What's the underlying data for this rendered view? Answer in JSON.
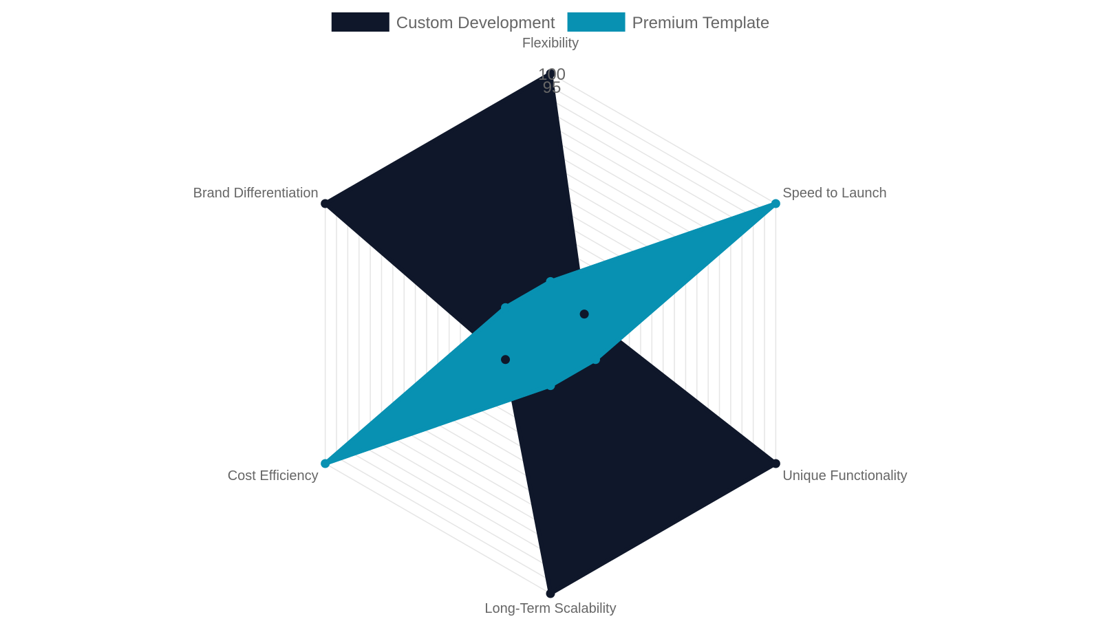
{
  "chart_data": {
    "type": "radar",
    "axes": [
      "Flexibility",
      "Speed to Launch",
      "Unique Functionality",
      "Long-Term Scalability",
      "Cost Efficiency",
      "Brand Differentiation"
    ],
    "rlim": [
      0,
      100
    ],
    "ticks": [
      0,
      5,
      10,
      15,
      20,
      25,
      30,
      35,
      40,
      45,
      50,
      55,
      60,
      65,
      70,
      75,
      80,
      85,
      90,
      95,
      100
    ],
    "visible_tick_labels": [
      "95",
      "100"
    ],
    "series": [
      {
        "name": "Custom Development",
        "values": [
          100,
          15,
          100,
          100,
          20,
          100
        ],
        "color": "#0f172a"
      },
      {
        "name": "Premium Template",
        "values": [
          20,
          100,
          20,
          20,
          100,
          20
        ],
        "color": "#0891b2"
      }
    ],
    "legend_position": "top",
    "grid": true
  }
}
